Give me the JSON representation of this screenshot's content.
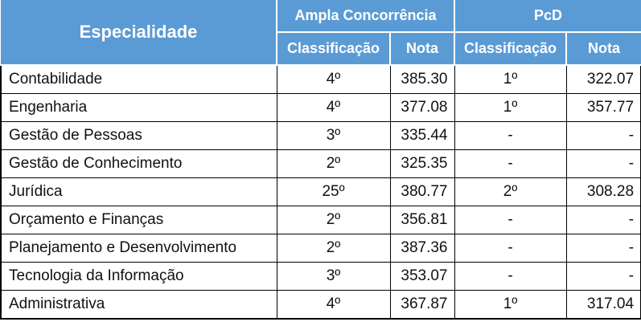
{
  "header": {
    "especialidade": "Especialidade",
    "ampla": "Ampla Concorrência",
    "pcd": "PcD",
    "classificacao": "Classificação",
    "nota": "Nota"
  },
  "colors": {
    "header_bg": "#5b9bd5",
    "header_text": "#ffffff"
  },
  "rows": [
    {
      "especialidade": "Contabilidade",
      "ampla_class": "4º",
      "ampla_nota": "385.30",
      "pcd_class": "1º",
      "pcd_nota": "322.07"
    },
    {
      "especialidade": "Engenharia",
      "ampla_class": "4º",
      "ampla_nota": "377.08",
      "pcd_class": "1º",
      "pcd_nota": "357.77"
    },
    {
      "especialidade": "Gestão de Pessoas",
      "ampla_class": "3º",
      "ampla_nota": "335.44",
      "pcd_class": "-",
      "pcd_nota": "-"
    },
    {
      "especialidade": "Gestão de Conhecimento",
      "ampla_class": "2º",
      "ampla_nota": "325.35",
      "pcd_class": "-",
      "pcd_nota": "-"
    },
    {
      "especialidade": "Jurídica",
      "ampla_class": "25º",
      "ampla_nota": "380.77",
      "pcd_class": "2º",
      "pcd_nota": "308.28"
    },
    {
      "especialidade": "Orçamento e Finanças",
      "ampla_class": "2º",
      "ampla_nota": "356.81",
      "pcd_class": "-",
      "pcd_nota": "-"
    },
    {
      "especialidade": "Planejamento e Desenvolvimento",
      "ampla_class": "2º",
      "ampla_nota": "387.36",
      "pcd_class": "-",
      "pcd_nota": "-"
    },
    {
      "especialidade": "Tecnologia da Informação",
      "ampla_class": "3º",
      "ampla_nota": "353.07",
      "pcd_class": "-",
      "pcd_nota": "-"
    },
    {
      "especialidade": "Administrativa",
      "ampla_class": "4º",
      "ampla_nota": "367.87",
      "pcd_class": "1º",
      "pcd_nota": "317.04"
    }
  ]
}
